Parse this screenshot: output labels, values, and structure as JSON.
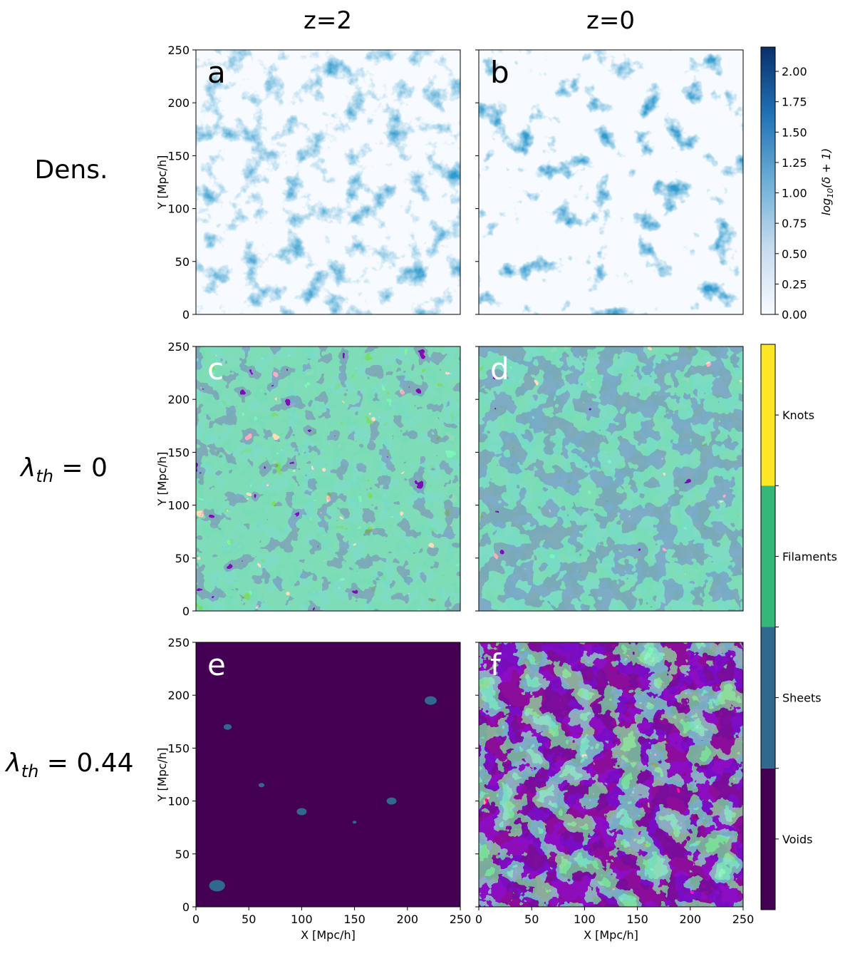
{
  "columns": [
    "z=2",
    "z=0"
  ],
  "rows": [
    {
      "label": "Dens.",
      "style": "plain"
    },
    {
      "label": "λ",
      "sub": "th",
      "value": " = 0",
      "style": "math"
    },
    {
      "label": "λ",
      "sub": "th",
      "value": " = 0.44",
      "style": "math"
    }
  ],
  "panels": [
    {
      "letter": "a",
      "row": 0,
      "col": 0,
      "kind": "density"
    },
    {
      "letter": "b",
      "row": 0,
      "col": 1,
      "kind": "density"
    },
    {
      "letter": "c",
      "row": 1,
      "col": 0,
      "kind": "classification"
    },
    {
      "letter": "d",
      "row": 1,
      "col": 1,
      "kind": "classification"
    },
    {
      "letter": "e",
      "row": 2,
      "col": 0,
      "kind": "classification"
    },
    {
      "letter": "f",
      "row": 2,
      "col": 1,
      "kind": "classification"
    }
  ],
  "axes": {
    "xlabel": "X [Mpc/h]",
    "ylabel": "Y [Mpc/h]",
    "xlim": [
      0,
      250
    ],
    "ylim": [
      0,
      250
    ],
    "ticks": [
      0,
      50,
      100,
      150,
      200,
      250
    ]
  },
  "colorbars": {
    "density": {
      "label": "log₁₀(δ + 1)",
      "label_main": "log",
      "label_sub": "10",
      "label_rest": "(δ + 1)",
      "range": [
        0,
        2.2
      ],
      "ticks": [
        "0.00",
        "0.25",
        "0.50",
        "0.75",
        "1.00",
        "1.25",
        "1.50",
        "1.75",
        "2.00"
      ],
      "colormap": "Blues",
      "color_low": "#f7fbff",
      "color_high": "#08306b"
    },
    "classes": {
      "categories": [
        "Voids",
        "Sheets",
        "Filaments",
        "Knots"
      ],
      "colors": [
        "#440154",
        "#31688e",
        "#35b779",
        "#fde725"
      ]
    }
  },
  "chart_data": [
    {
      "type": "heatmap",
      "panel": "a",
      "title": "z=2",
      "row_label": "Dens.",
      "xlabel": "",
      "ylabel": "Y [Mpc/h]",
      "xlim": [
        0,
        250
      ],
      "ylim": [
        0,
        250
      ],
      "value": "log10(δ+1)",
      "range": [
        0,
        2.2
      ],
      "colormap": "Blues"
    },
    {
      "type": "heatmap",
      "panel": "b",
      "title": "z=0",
      "row_label": "Dens.",
      "xlabel": "",
      "ylabel": "",
      "xlim": [
        0,
        250
      ],
      "ylim": [
        0,
        250
      ],
      "value": "log10(δ+1)",
      "range": [
        0,
        2.2
      ],
      "colormap": "Blues"
    },
    {
      "type": "heatmap",
      "panel": "c",
      "row_label": "λth = 0",
      "xlabel": "",
      "ylabel": "Y [Mpc/h]",
      "xlim": [
        0,
        250
      ],
      "ylim": [
        0,
        250
      ],
      "categories": [
        "Voids",
        "Sheets",
        "Filaments",
        "Knots"
      ]
    },
    {
      "type": "heatmap",
      "panel": "d",
      "row_label": "λth = 0",
      "xlabel": "",
      "ylabel": "",
      "xlim": [
        0,
        250
      ],
      "ylim": [
        0,
        250
      ],
      "categories": [
        "Voids",
        "Sheets",
        "Filaments",
        "Knots"
      ]
    },
    {
      "type": "heatmap",
      "panel": "e",
      "row_label": "λth = 0.44",
      "xlabel": "X [Mpc/h]",
      "ylabel": "Y [Mpc/h]",
      "xlim": [
        0,
        250
      ],
      "ylim": [
        0,
        250
      ],
      "categories": [
        "Voids",
        "Sheets",
        "Filaments",
        "Knots"
      ]
    },
    {
      "type": "heatmap",
      "panel": "f",
      "row_label": "λth = 0.44",
      "xlabel": "X [Mpc/h]",
      "ylabel": "",
      "xlim": [
        0,
        250
      ],
      "ylim": [
        0,
        250
      ],
      "categories": [
        "Voids",
        "Sheets",
        "Filaments",
        "Knots"
      ]
    }
  ]
}
